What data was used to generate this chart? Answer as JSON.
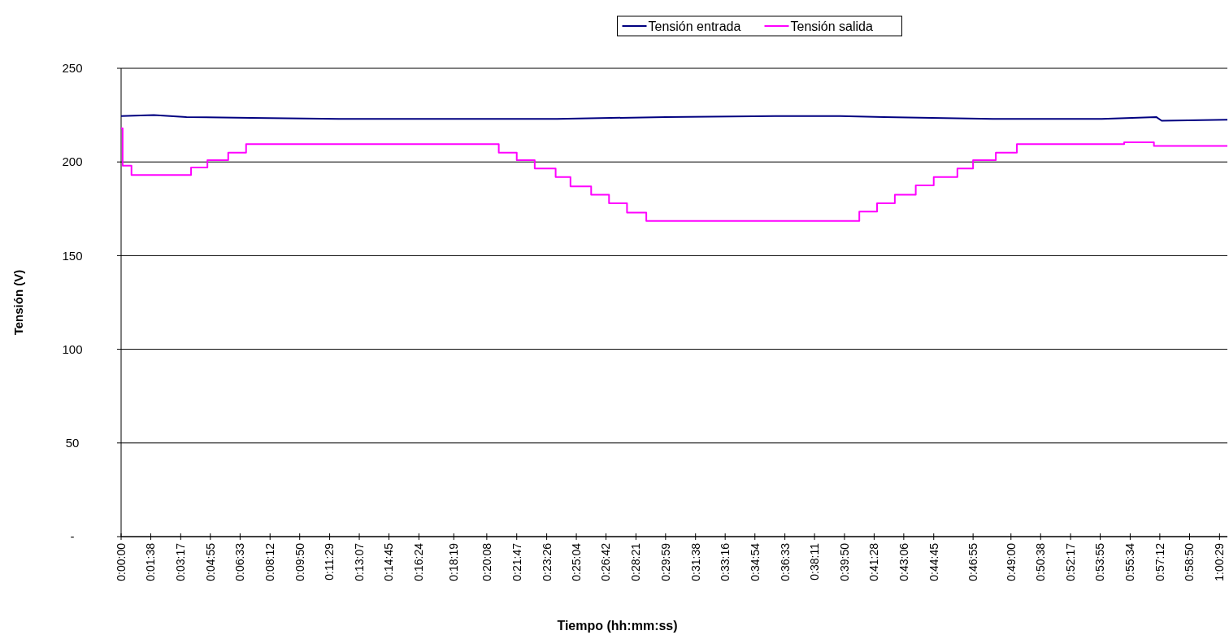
{
  "chart_data": {
    "type": "line",
    "xlabel": "Tiempo (hh:mm:ss)",
    "ylabel": "Tensión (V)",
    "xlim": [
      0,
      1.0153
    ],
    "ylim": [
      0,
      250
    ],
    "xticks": [
      {
        "value": 0,
        "label": "0:00:00"
      },
      {
        "value": 0.0272,
        "label": "0:01:38"
      },
      {
        "value": 0.0547,
        "label": "0:03:17"
      },
      {
        "value": 0.0819,
        "label": "0:04:55"
      },
      {
        "value": 0.1092,
        "label": "0:06:33"
      },
      {
        "value": 0.1367,
        "label": "0:08:12"
      },
      {
        "value": 0.1639,
        "label": "0:09:50"
      },
      {
        "value": 0.1914,
        "label": "0:11:29"
      },
      {
        "value": 0.2186,
        "label": "0:13:07"
      },
      {
        "value": 0.2458,
        "label": "0:14:45"
      },
      {
        "value": 0.2733,
        "label": "0:16:24"
      },
      {
        "value": 0.3053,
        "label": "0:18:19"
      },
      {
        "value": 0.3356,
        "label": "0:20:08"
      },
      {
        "value": 0.3631,
        "label": "0:21:47"
      },
      {
        "value": 0.3906,
        "label": "0:23:26"
      },
      {
        "value": 0.4178,
        "label": "0:25:04"
      },
      {
        "value": 0.445,
        "label": "0:26:42"
      },
      {
        "value": 0.4725,
        "label": "0:28:21"
      },
      {
        "value": 0.4997,
        "label": "0:29:59"
      },
      {
        "value": 0.5272,
        "label": "0:31:38"
      },
      {
        "value": 0.5544,
        "label": "0:33:16"
      },
      {
        "value": 0.5817,
        "label": "0:34:54"
      },
      {
        "value": 0.6092,
        "label": "0:36:33"
      },
      {
        "value": 0.6364,
        "label": "0:38:11"
      },
      {
        "value": 0.6639,
        "label": "0:39:50"
      },
      {
        "value": 0.6911,
        "label": "0:41:28"
      },
      {
        "value": 0.7183,
        "label": "0:43:06"
      },
      {
        "value": 0.7458,
        "label": "0:44:45"
      },
      {
        "value": 0.7819,
        "label": "0:46:55"
      },
      {
        "value": 0.8167,
        "label": "0:49:00"
      },
      {
        "value": 0.8439,
        "label": "0:50:38"
      },
      {
        "value": 0.8714,
        "label": "0:52:17"
      },
      {
        "value": 0.8986,
        "label": "0:53:55"
      },
      {
        "value": 0.9261,
        "label": "0:55:34"
      },
      {
        "value": 0.9533,
        "label": "0:57:12"
      },
      {
        "value": 0.9806,
        "label": "0:58:50"
      },
      {
        "value": 1.0081,
        "label": "1:00:29"
      }
    ],
    "yticks": [
      {
        "value": 0,
        "label": "-"
      },
      50,
      100,
      150,
      200,
      250
    ],
    "grid": "y",
    "legend": "top",
    "series": [
      {
        "name": "Tensión entrada",
        "color": "#000080",
        "x": [
          0,
          0.03,
          0.06,
          0.12,
          0.2,
          0.3,
          0.4,
          0.5,
          0.6,
          0.66,
          0.7,
          0.8,
          0.9,
          0.95,
          0.955,
          1.0153
        ],
        "values": [
          224.5,
          225,
          224,
          223.5,
          223,
          223,
          223,
          224,
          224.5,
          224.5,
          224,
          223,
          223,
          224,
          222,
          222.5
        ]
      },
      {
        "name": "Tensión salida",
        "type": "step",
        "color": "#ff00ff",
        "x": [
          0,
          0.0014,
          0.0095,
          0.0642,
          0.0792,
          0.0983,
          0.1147,
          0.3466,
          0.3631,
          0.3796,
          0.3988,
          0.4124,
          0.4314,
          0.4478,
          0.4643,
          0.482,
          0.6775,
          0.6938,
          0.7101,
          0.7293,
          0.7458,
          0.7675,
          0.7819,
          0.8028,
          0.8221,
          0.9206,
          0.9479,
          1.0153
        ],
        "values": [
          218,
          198,
          193,
          197,
          201,
          205,
          209.5,
          205,
          201,
          196.5,
          192,
          187,
          182.5,
          178,
          173,
          168.5,
          173.5,
          178,
          182.5,
          187.5,
          192,
          196.5,
          201,
          205,
          209.5,
          210.5,
          208.5,
          208.5
        ]
      }
    ]
  }
}
